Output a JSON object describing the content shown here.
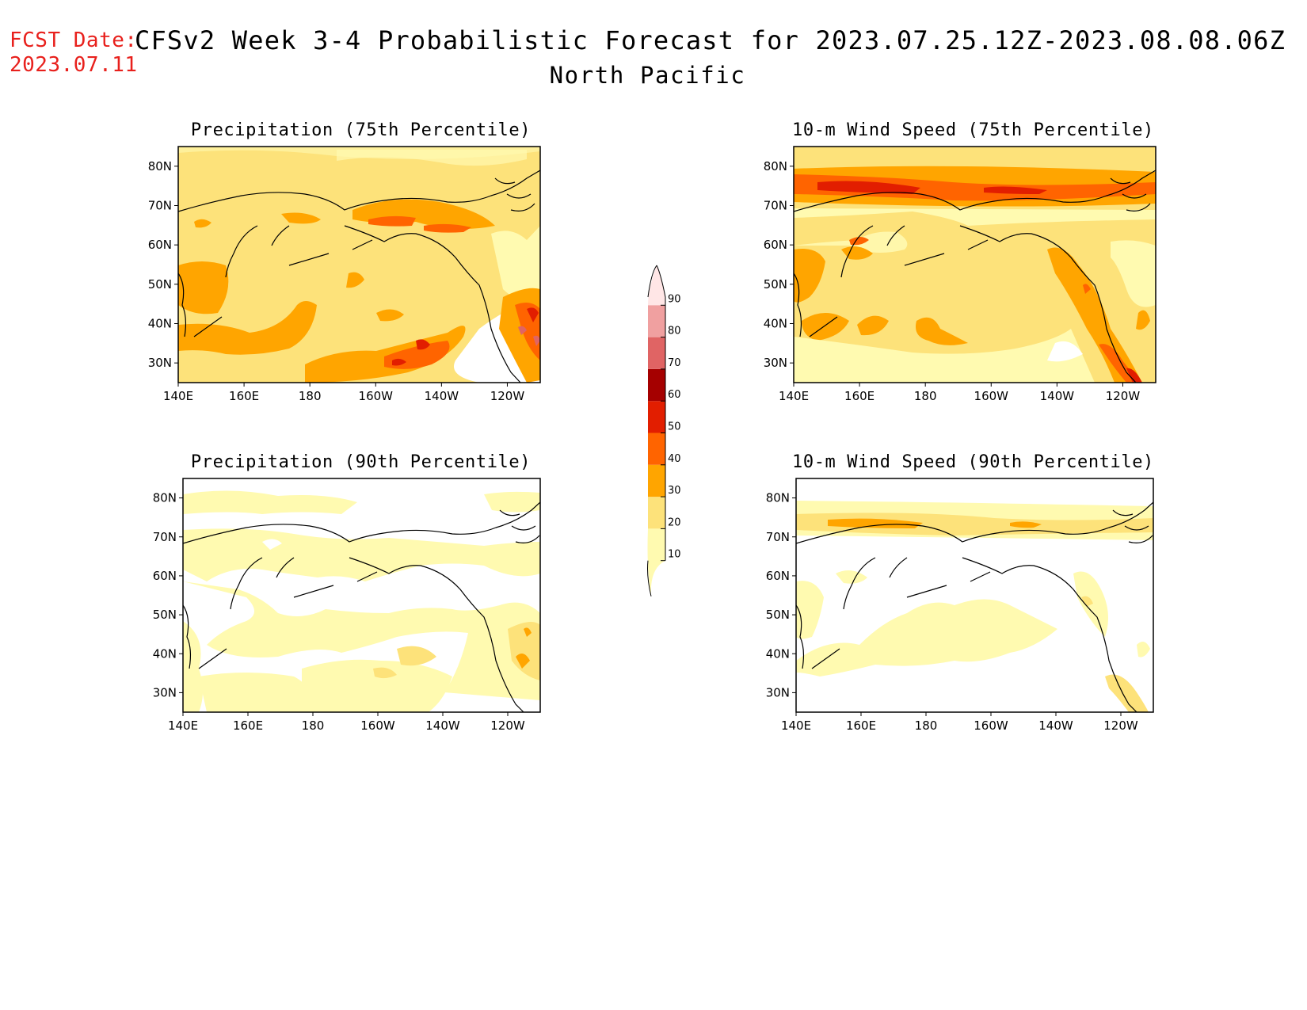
{
  "header": {
    "fcst_label": "FCST Date:",
    "fcst_date": "2023.07.11",
    "title": "CFSv2 Week 3-4 Probabilistic Forecast for 2023.07.25.12Z-2023.08.08.06Z",
    "region": "North Pacific"
  },
  "axes": {
    "lat_ticks": [
      "80N",
      "70N",
      "60N",
      "50N",
      "40N",
      "30N"
    ],
    "lon_ticks": [
      "140E",
      "160E",
      "180",
      "160W",
      "140W",
      "120W"
    ]
  },
  "panels": [
    {
      "id": "precip75",
      "title": "Precipitation (75th Percentile)"
    },
    {
      "id": "wind75",
      "title": "10-m Wind Speed (75th Percentile)"
    },
    {
      "id": "precip90",
      "title": "Precipitation (90th Percentile)"
    },
    {
      "id": "wind90",
      "title": "10-m Wind Speed (90th Percentile)"
    }
  ],
  "colorbar": {
    "labels": [
      "10",
      "20",
      "30",
      "40",
      "50",
      "60",
      "70",
      "80",
      "90"
    ],
    "colors": [
      "#fffab0",
      "#fde27a",
      "#ffa500",
      "#ff6400",
      "#e21e00",
      "#a50000",
      "#e06464",
      "#f0a0a0",
      "#ffe6e6"
    ]
  }
}
